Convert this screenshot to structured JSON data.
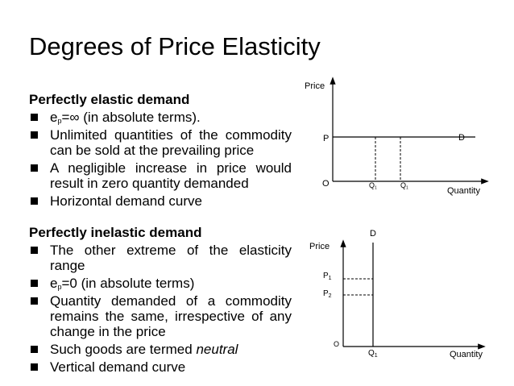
{
  "title": "Degrees of Price Elasticity",
  "elastic": {
    "heading": "Perfectly elastic demand",
    "items": [
      {
        "pre": "e",
        "sub": "p",
        "post": "=∞ (in absolute terms)."
      },
      {
        "text": "Unlimited quantities of the commodity can be sold at the prevailing price"
      },
      {
        "text": "A negligible increase in price would result in zero quantity demanded"
      },
      {
        "text": "Horizontal demand curve"
      }
    ]
  },
  "inelastic": {
    "heading": "Perfectly inelastic demand",
    "items": [
      {
        "text": "The other extreme of the elasticity range"
      },
      {
        "pre": "e",
        "sub": "p",
        "post": "=0 (in absolute terms)"
      },
      {
        "text": "Quantity demanded of a commodity remains the same, irrespective of any change in the price"
      },
      {
        "pre": "Such goods are termed ",
        "em": "neutral"
      },
      {
        "text": "Vertical demand curve"
      }
    ]
  },
  "diagram1": {
    "y_axis_label": "Price",
    "x_axis_label": "Quantity",
    "origin": "O",
    "price_label": "P",
    "curve_label": "D",
    "q_labels": [
      {
        "main": "Q",
        "sub": "1"
      },
      {
        "main": "Q",
        "sub": "1"
      }
    ]
  },
  "diagram2": {
    "y_axis_label": "Price",
    "x_axis_label": "Quantity",
    "origin": "O",
    "curve_label": "D",
    "p_labels": [
      {
        "main": "P",
        "sub": "1"
      },
      {
        "main": "P",
        "sub": "2"
      }
    ],
    "q_label": {
      "main": "Q",
      "sub": "1"
    }
  },
  "colors": {
    "text": "#000000",
    "background": "#ffffff"
  }
}
